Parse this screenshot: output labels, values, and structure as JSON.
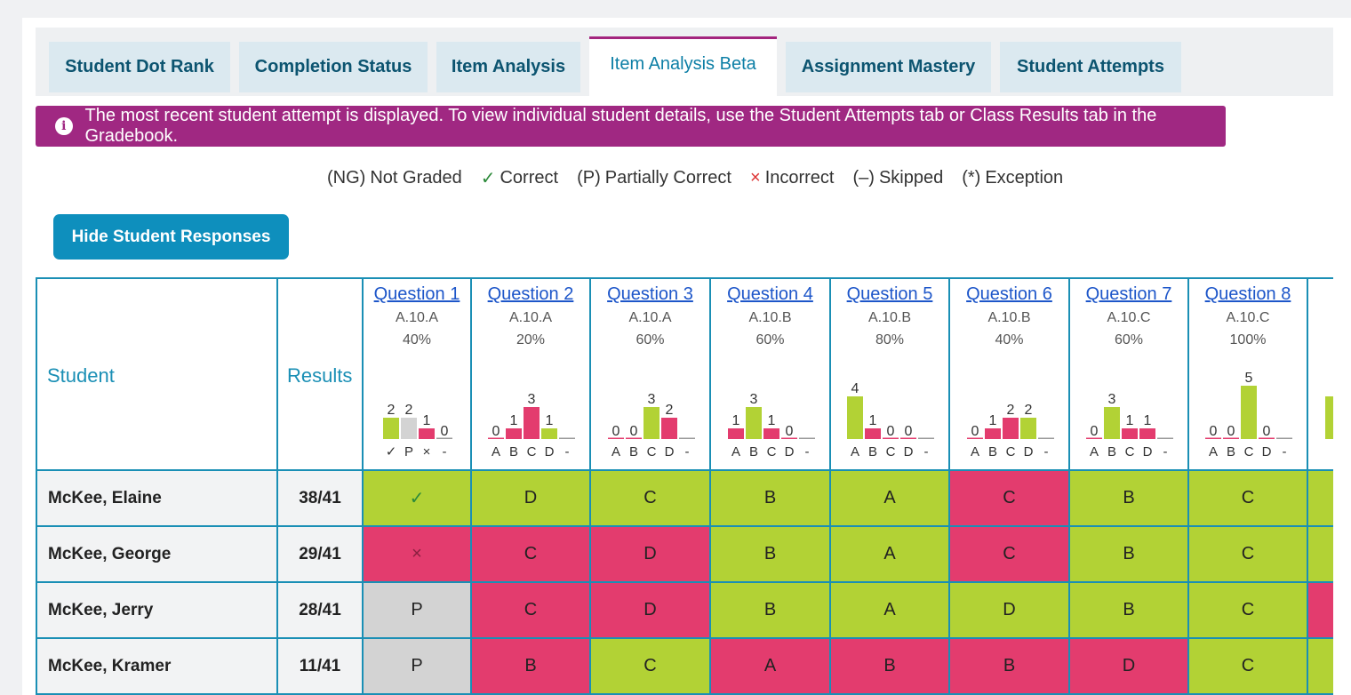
{
  "tabs": [
    {
      "label": "Student Dot Rank",
      "active": false
    },
    {
      "label": "Completion Status",
      "active": false
    },
    {
      "label": "Item Analysis",
      "active": false
    },
    {
      "label": "Item Analysis Beta",
      "active": true
    },
    {
      "label": "Assignment Mastery",
      "active": false
    },
    {
      "label": "Student Attempts",
      "active": false
    }
  ],
  "notice": {
    "icon": "info-icon",
    "text": "The most recent student attempt is displayed. To view individual student details, use the Student Attempts tab or Class Results tab in the Gradebook."
  },
  "legend": [
    {
      "symbol": "(NG)",
      "label": "Not Graded",
      "style": "plain"
    },
    {
      "symbol": "✓",
      "label": "Correct",
      "style": "green"
    },
    {
      "symbol": "(P)",
      "label": "Partially Correct",
      "style": "plain"
    },
    {
      "symbol": "×",
      "label": "Incorrect",
      "style": "red"
    },
    {
      "symbol": "(–)",
      "label": "Skipped",
      "style": "plain"
    },
    {
      "symbol": "(*)",
      "label": "Exception",
      "style": "plain"
    }
  ],
  "hide_button": "Hide Student Responses",
  "table": {
    "student_header": "Student",
    "results_header": "Results",
    "colors": {
      "correct": "#b2d235",
      "incorrect": "#e33c6e",
      "partial": "#d3d3d3",
      "skipped": "#999999"
    },
    "questions": [
      {
        "label": "Question 1",
        "standard": "A.10.A",
        "percent": "40%",
        "categories": [
          "✓",
          "P",
          "×",
          "-"
        ],
        "counts": [
          2,
          2,
          1,
          0
        ],
        "kinds": [
          "correct",
          "partial",
          "incorrect",
          "skipped"
        ]
      },
      {
        "label": "Question 2",
        "standard": "A.10.A",
        "percent": "20%",
        "categories": [
          "A",
          "B",
          "C",
          "D",
          "-"
        ],
        "counts": [
          0,
          1,
          3,
          1,
          null
        ],
        "kinds": [
          "incorrect",
          "incorrect",
          "incorrect",
          "correct",
          "skipped"
        ]
      },
      {
        "label": "Question 3",
        "standard": "A.10.A",
        "percent": "60%",
        "categories": [
          "A",
          "B",
          "C",
          "D",
          "-"
        ],
        "counts": [
          0,
          0,
          3,
          2,
          null
        ],
        "kinds": [
          "incorrect",
          "incorrect",
          "correct",
          "incorrect",
          "skipped"
        ]
      },
      {
        "label": "Question 4",
        "standard": "A.10.B",
        "percent": "60%",
        "categories": [
          "A",
          "B",
          "C",
          "D",
          "-"
        ],
        "counts": [
          1,
          3,
          1,
          0,
          null
        ],
        "kinds": [
          "incorrect",
          "correct",
          "incorrect",
          "incorrect",
          "skipped"
        ]
      },
      {
        "label": "Question 5",
        "standard": "A.10.B",
        "percent": "80%",
        "categories": [
          "A",
          "B",
          "C",
          "D",
          "-"
        ],
        "counts": [
          4,
          1,
          0,
          0,
          null
        ],
        "kinds": [
          "correct",
          "incorrect",
          "incorrect",
          "incorrect",
          "skipped"
        ]
      },
      {
        "label": "Question 6",
        "standard": "A.10.B",
        "percent": "40%",
        "categories": [
          "A",
          "B",
          "C",
          "D",
          "-"
        ],
        "counts": [
          0,
          1,
          2,
          2,
          null
        ],
        "kinds": [
          "incorrect",
          "incorrect",
          "incorrect",
          "correct",
          "skipped"
        ]
      },
      {
        "label": "Question 7",
        "standard": "A.10.C",
        "percent": "60%",
        "categories": [
          "A",
          "B",
          "C",
          "D",
          "-"
        ],
        "counts": [
          0,
          3,
          1,
          1,
          null
        ],
        "kinds": [
          "incorrect",
          "correct",
          "incorrect",
          "incorrect",
          "skipped"
        ]
      },
      {
        "label": "Question 8",
        "standard": "A.10.C",
        "percent": "100%",
        "categories": [
          "A",
          "B",
          "C",
          "D",
          "-"
        ],
        "counts": [
          0,
          0,
          5,
          0,
          null
        ],
        "kinds": [
          "incorrect",
          "incorrect",
          "correct",
          "incorrect",
          "skipped"
        ]
      }
    ],
    "rows": [
      {
        "name": "McKee, Elaine",
        "result": "38/41",
        "responses": [
          [
            "✓",
            "g"
          ],
          [
            "D",
            "g"
          ],
          [
            "C",
            "g"
          ],
          [
            "B",
            "g"
          ],
          [
            "A",
            "g"
          ],
          [
            "C",
            "r"
          ],
          [
            "B",
            "g"
          ],
          [
            "C",
            "g"
          ]
        ],
        "overflow": "g"
      },
      {
        "name": "McKee, George",
        "result": "29/41",
        "responses": [
          [
            "×",
            "r"
          ],
          [
            "C",
            "r"
          ],
          [
            "D",
            "r"
          ],
          [
            "B",
            "g"
          ],
          [
            "A",
            "g"
          ],
          [
            "C",
            "r"
          ],
          [
            "B",
            "g"
          ],
          [
            "C",
            "g"
          ]
        ],
        "overflow": "g"
      },
      {
        "name": "McKee, Jerry",
        "result": "28/41",
        "responses": [
          [
            "P",
            "p"
          ],
          [
            "C",
            "r"
          ],
          [
            "D",
            "r"
          ],
          [
            "B",
            "g"
          ],
          [
            "A",
            "g"
          ],
          [
            "D",
            "g"
          ],
          [
            "B",
            "g"
          ],
          [
            "C",
            "g"
          ]
        ],
        "overflow": "r"
      },
      {
        "name": "McKee, Kramer",
        "result": "11/41",
        "responses": [
          [
            "P",
            "p"
          ],
          [
            "B",
            "r"
          ],
          [
            "C",
            "g"
          ],
          [
            "A",
            "r"
          ],
          [
            "B",
            "r"
          ],
          [
            "B",
            "r"
          ],
          [
            "D",
            "r"
          ],
          [
            "C",
            "g"
          ]
        ],
        "overflow": "g"
      }
    ]
  }
}
